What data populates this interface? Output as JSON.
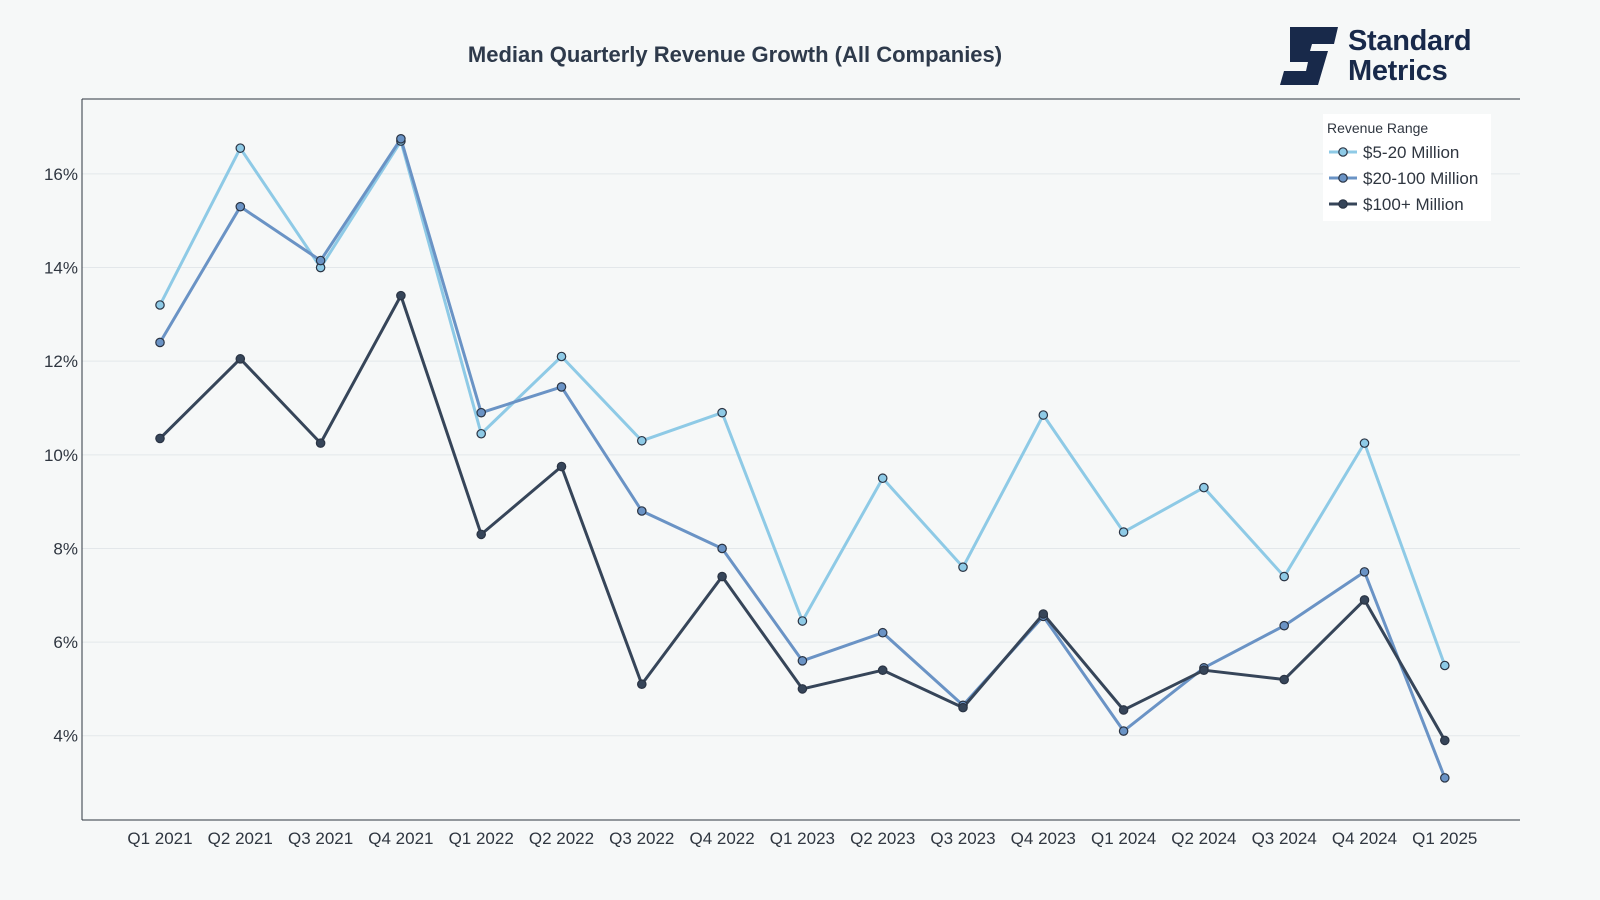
{
  "brand": {
    "line1": "Standard",
    "line2": "Metrics",
    "color": "#18294a"
  },
  "chart_data": {
    "type": "line",
    "title": "Median Quarterly Revenue Growth (All Companies)",
    "xlabel": "",
    "ylabel": "",
    "categories": [
      "Q1 2021",
      "Q2 2021",
      "Q3 2021",
      "Q4 2021",
      "Q1 2022",
      "Q2 2022",
      "Q3 2022",
      "Q4 2022",
      "Q1 2023",
      "Q2 2023",
      "Q3 2023",
      "Q4 2023",
      "Q1 2024",
      "Q2 2024",
      "Q3 2024",
      "Q4 2024",
      "Q1 2025"
    ],
    "ylim": [
      2.2,
      17.6
    ],
    "yticks": [
      4,
      6,
      8,
      10,
      12,
      14,
      16
    ],
    "ytick_suffix": "%",
    "grid": true,
    "legend": {
      "title": "Revenue Range",
      "position": "top-right"
    },
    "series": [
      {
        "name": "$5-20 Million",
        "color": "#8ecae6",
        "values": [
          13.2,
          16.55,
          14.0,
          16.7,
          10.45,
          12.1,
          10.3,
          10.9,
          6.45,
          9.5,
          7.6,
          10.85,
          8.35,
          9.3,
          7.4,
          10.25,
          5.5
        ]
      },
      {
        "name": "$20-100 Million",
        "color": "#6a93c5",
        "values": [
          12.4,
          15.3,
          14.15,
          16.75,
          10.9,
          11.45,
          8.8,
          8.0,
          5.6,
          6.2,
          4.65,
          6.55,
          4.1,
          5.45,
          6.35,
          7.5,
          3.1
        ]
      },
      {
        "name": "$100+ Million",
        "color": "#364559",
        "values": [
          10.35,
          12.05,
          10.25,
          13.4,
          8.3,
          9.75,
          5.1,
          7.4,
          5.0,
          5.4,
          4.6,
          6.6,
          4.55,
          5.4,
          5.2,
          6.9,
          3.9
        ]
      }
    ]
  }
}
